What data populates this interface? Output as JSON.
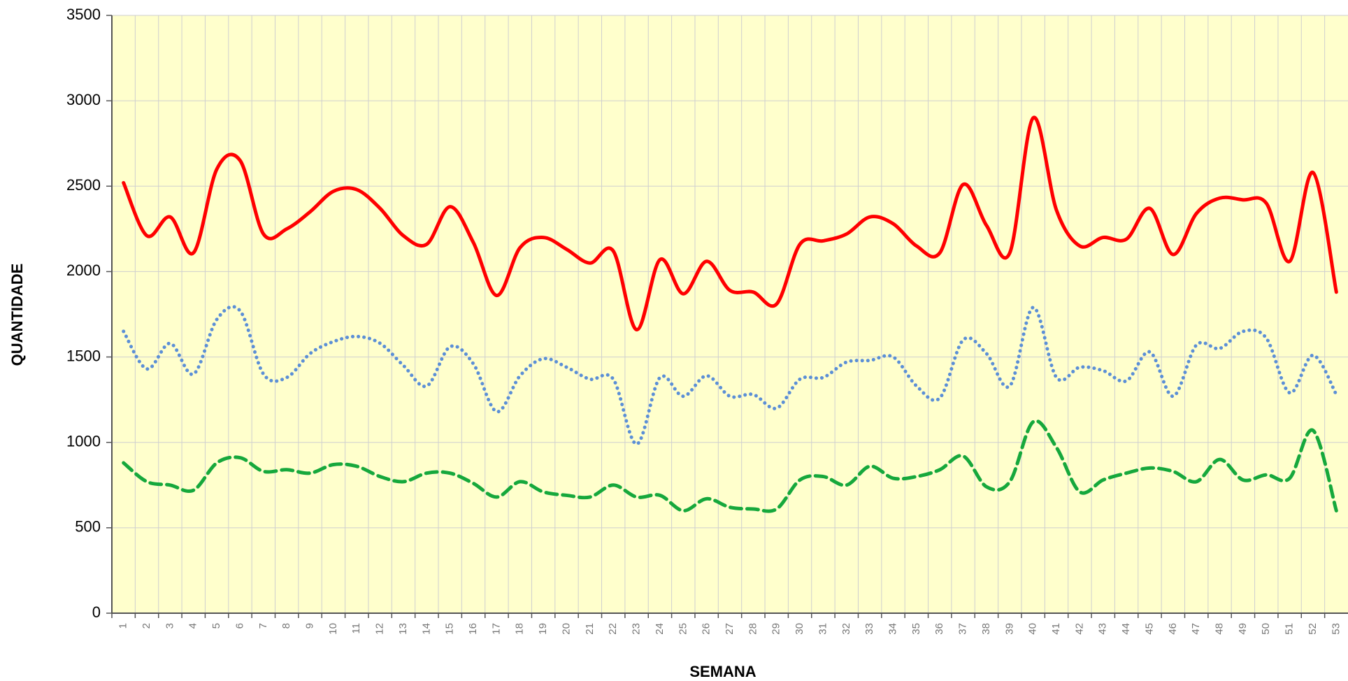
{
  "chart_data": {
    "type": "line",
    "x_label": "SEMANA",
    "y_label": "QUANTIDADE",
    "categories": [
      "1",
      "2",
      "3",
      "4",
      "5",
      "6",
      "7",
      "8",
      "9",
      "10",
      "11",
      "12",
      "13",
      "14",
      "15",
      "16",
      "17",
      "18",
      "19",
      "20",
      "21",
      "22",
      "23",
      "24",
      "25",
      "26",
      "27",
      "28",
      "29",
      "30",
      "31",
      "32",
      "33",
      "34",
      "35",
      "36",
      "37",
      "38",
      "39",
      "40",
      "41",
      "42",
      "43",
      "44",
      "45",
      "46",
      "47",
      "48",
      "49",
      "50",
      "51",
      "52",
      "53"
    ],
    "series": [
      {
        "color": "#ff0000",
        "style": "solid",
        "values": [
          2520,
          2210,
          2320,
          2110,
          2600,
          2650,
          2220,
          2250,
          2350,
          2470,
          2480,
          2370,
          2210,
          2160,
          2380,
          2170,
          1860,
          2140,
          2200,
          2130,
          2050,
          2120,
          1660,
          2070,
          1870,
          2060,
          1890,
          1880,
          1810,
          2160,
          2180,
          2220,
          2320,
          2280,
          2150,
          2110,
          2510,
          2270,
          2110,
          2900,
          2360,
          2150,
          2200,
          2190,
          2370,
          2100,
          2340,
          2430,
          2420,
          2400,
          2060,
          2580,
          1880
        ]
      },
      {
        "color": "#5b8fd6",
        "style": "dotted",
        "values": [
          1650,
          1430,
          1580,
          1400,
          1720,
          1770,
          1400,
          1380,
          1520,
          1590,
          1620,
          1580,
          1450,
          1330,
          1560,
          1460,
          1180,
          1390,
          1490,
          1440,
          1370,
          1370,
          990,
          1380,
          1270,
          1390,
          1270,
          1280,
          1200,
          1370,
          1380,
          1470,
          1480,
          1500,
          1330,
          1260,
          1600,
          1520,
          1330,
          1790,
          1380,
          1440,
          1420,
          1360,
          1530,
          1270,
          1570,
          1550,
          1650,
          1610,
          1290,
          1510,
          1280
        ]
      },
      {
        "color": "#16a83c",
        "style": "dashed",
        "values": [
          880,
          770,
          750,
          720,
          880,
          910,
          830,
          840,
          820,
          870,
          860,
          800,
          770,
          820,
          820,
          760,
          680,
          770,
          710,
          690,
          680,
          750,
          680,
          690,
          600,
          670,
          620,
          610,
          610,
          780,
          800,
          750,
          860,
          790,
          800,
          840,
          920,
          740,
          770,
          1120,
          970,
          710,
          780,
          820,
          850,
          830,
          770,
          900,
          780,
          810,
          790,
          1070,
          600
        ]
      }
    ],
    "ylim": [
      0,
      3500
    ],
    "yticks": [
      0,
      500,
      1000,
      1500,
      2000,
      2500,
      3000,
      3500
    ],
    "grid": true,
    "background": "#ffffcc"
  }
}
